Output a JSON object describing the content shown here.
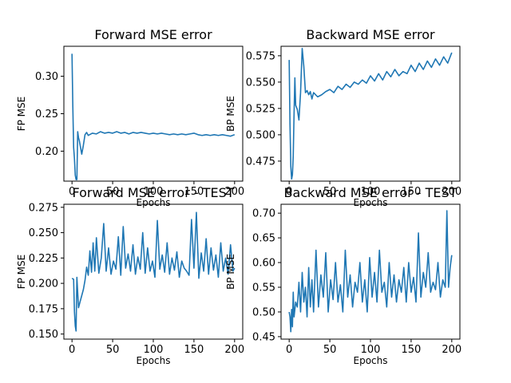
{
  "chart_data": [
    {
      "type": "line",
      "title": "Forward MSE error",
      "xlabel": "Epochs",
      "ylabel": "FP MSE",
      "xlim": [
        -10,
        210
      ],
      "ylim": [
        0.16,
        0.34
      ],
      "xticks": [
        0,
        50,
        100,
        150,
        200
      ],
      "yticks": [
        0.2,
        0.25,
        0.3
      ],
      "ytick_labels": [
        "0.20",
        "0.25",
        "0.30"
      ],
      "xtick_labels": [
        "0",
        "50",
        "100",
        "150",
        "200"
      ],
      "grid": false,
      "series": [
        {
          "x": [
            0,
            1,
            2,
            3,
            4,
            5,
            6,
            7,
            8,
            9,
            10,
            11,
            12,
            14,
            16,
            18,
            20,
            25,
            30,
            35,
            40,
            45,
            50,
            55,
            60,
            65,
            70,
            75,
            80,
            85,
            90,
            95,
            100,
            105,
            110,
            115,
            120,
            125,
            130,
            135,
            140,
            145,
            150,
            155,
            160,
            165,
            170,
            175,
            180,
            185,
            190,
            195,
            200
          ],
          "y": [
            0.33,
            0.26,
            0.205,
            0.19,
            0.168,
            0.162,
            0.162,
            0.226,
            0.218,
            0.214,
            0.208,
            0.202,
            0.196,
            0.208,
            0.222,
            0.225,
            0.221,
            0.224,
            0.223,
            0.226,
            0.224,
            0.225,
            0.224,
            0.226,
            0.224,
            0.225,
            0.223,
            0.225,
            0.224,
            0.225,
            0.224,
            0.223,
            0.224,
            0.223,
            0.224,
            0.223,
            0.222,
            0.223,
            0.222,
            0.223,
            0.222,
            0.223,
            0.224,
            0.222,
            0.221,
            0.222,
            0.221,
            0.222,
            0.221,
            0.222,
            0.221,
            0.22,
            0.222
          ]
        }
      ]
    },
    {
      "type": "line",
      "title": "Backward MSE error",
      "xlabel": "Epochs",
      "ylabel": "BP MSE",
      "xlim": [
        -10,
        210
      ],
      "ylim": [
        0.456,
        0.584
      ],
      "xticks": [
        0,
        50,
        100,
        150,
        200
      ],
      "yticks": [
        0.475,
        0.5,
        0.525,
        0.55,
        0.575
      ],
      "ytick_labels": [
        "0.475",
        "0.500",
        "0.525",
        "0.550",
        "0.575"
      ],
      "xtick_labels": [
        "0",
        "50",
        "100",
        "150",
        "200"
      ],
      "grid": false,
      "series": [
        {
          "x": [
            0,
            1,
            2,
            3,
            4,
            5,
            6,
            7,
            8,
            10,
            12,
            14,
            16,
            18,
            20,
            22,
            24,
            26,
            28,
            30,
            35,
            40,
            45,
            50,
            55,
            60,
            65,
            70,
            75,
            80,
            85,
            90,
            95,
            100,
            105,
            110,
            115,
            120,
            125,
            130,
            135,
            140,
            145,
            150,
            155,
            160,
            165,
            170,
            175,
            180,
            185,
            190,
            195,
            200
          ],
          "y": [
            0.571,
            0.51,
            0.47,
            0.458,
            0.462,
            0.48,
            0.52,
            0.554,
            0.528,
            0.524,
            0.514,
            0.54,
            0.582,
            0.565,
            0.54,
            0.542,
            0.538,
            0.541,
            0.534,
            0.54,
            0.536,
            0.538,
            0.541,
            0.543,
            0.54,
            0.546,
            0.543,
            0.548,
            0.545,
            0.55,
            0.548,
            0.552,
            0.549,
            0.556,
            0.551,
            0.558,
            0.552,
            0.56,
            0.555,
            0.562,
            0.556,
            0.56,
            0.558,
            0.566,
            0.56,
            0.568,
            0.562,
            0.57,
            0.564,
            0.572,
            0.566,
            0.574,
            0.568,
            0.578
          ]
        }
      ]
    },
    {
      "type": "line",
      "title": "Forward MSE error - TEST",
      "xlabel": "Epochs",
      "ylabel": "FP MSE",
      "xlim": [
        -10,
        210
      ],
      "ylim": [
        0.145,
        0.278
      ],
      "xticks": [
        0,
        50,
        100,
        150,
        200
      ],
      "yticks": [
        0.15,
        0.175,
        0.2,
        0.225,
        0.25,
        0.275
      ],
      "ytick_labels": [
        "0.150",
        "0.175",
        "0.200",
        "0.225",
        "0.250",
        "0.275"
      ],
      "xtick_labels": [
        "0",
        "50",
        "100",
        "150",
        "200"
      ],
      "grid": false,
      "series": [
        {
          "x": [
            0,
            2,
            3,
            4,
            5,
            6,
            8,
            10,
            12,
            14,
            16,
            18,
            20,
            22,
            24,
            26,
            28,
            30,
            33,
            36,
            39,
            42,
            45,
            48,
            51,
            54,
            57,
            60,
            63,
            66,
            69,
            72,
            75,
            78,
            81,
            84,
            87,
            90,
            93,
            96,
            99,
            102,
            105,
            108,
            111,
            114,
            117,
            120,
            123,
            126,
            129,
            132,
            135,
            138,
            141,
            144,
            147,
            150,
            153,
            156,
            159,
            162,
            165,
            168,
            171,
            174,
            177,
            180,
            183,
            186,
            189,
            192,
            195,
            198,
            200
          ],
          "y": [
            0.205,
            0.204,
            0.172,
            0.158,
            0.153,
            0.206,
            0.176,
            0.182,
            0.188,
            0.194,
            0.203,
            0.216,
            0.208,
            0.232,
            0.211,
            0.24,
            0.212,
            0.245,
            0.21,
            0.225,
            0.259,
            0.212,
            0.235,
            0.209,
            0.222,
            0.214,
            0.246,
            0.208,
            0.256,
            0.215,
            0.229,
            0.212,
            0.238,
            0.209,
            0.226,
            0.214,
            0.25,
            0.21,
            0.235,
            0.212,
            0.222,
            0.206,
            0.262,
            0.214,
            0.228,
            0.211,
            0.24,
            0.209,
            0.225,
            0.213,
            0.231,
            0.206,
            0.222,
            0.215,
            0.212,
            0.208,
            0.263,
            0.215,
            0.27,
            0.205,
            0.23,
            0.212,
            0.244,
            0.209,
            0.235,
            0.213,
            0.228,
            0.206,
            0.24,
            0.212,
            0.225,
            0.209,
            0.238,
            0.212,
            0.215
          ]
        }
      ]
    },
    {
      "type": "line",
      "title": "Backward MSE error - TEST",
      "xlabel": "Epochs",
      "ylabel": "BP MSE",
      "xlim": [
        -10,
        210
      ],
      "ylim": [
        0.445,
        0.718
      ],
      "xticks": [
        0,
        50,
        100,
        150,
        200
      ],
      "yticks": [
        0.45,
        0.5,
        0.55,
        0.6,
        0.65,
        0.7
      ],
      "ytick_labels": [
        "0.45",
        "0.50",
        "0.55",
        "0.60",
        "0.65",
        "0.70"
      ],
      "xtick_labels": [
        "0",
        "50",
        "100",
        "150",
        "200"
      ],
      "grid": false,
      "series": [
        {
          "x": [
            0,
            1,
            2,
            3,
            4,
            5,
            6,
            8,
            10,
            12,
            14,
            16,
            18,
            20,
            22,
            24,
            26,
            28,
            30,
            33,
            36,
            39,
            42,
            45,
            48,
            51,
            54,
            57,
            60,
            63,
            66,
            69,
            72,
            75,
            78,
            81,
            84,
            87,
            90,
            93,
            96,
            99,
            102,
            105,
            108,
            111,
            114,
            117,
            120,
            123,
            126,
            129,
            132,
            135,
            138,
            141,
            144,
            147,
            150,
            153,
            156,
            159,
            162,
            165,
            168,
            171,
            174,
            177,
            180,
            183,
            186,
            189,
            192,
            194,
            196,
            198,
            200
          ],
          "y": [
            0.5,
            0.49,
            0.46,
            0.505,
            0.47,
            0.54,
            0.49,
            0.52,
            0.51,
            0.56,
            0.5,
            0.58,
            0.52,
            0.55,
            0.49,
            0.59,
            0.51,
            0.565,
            0.5,
            0.625,
            0.51,
            0.575,
            0.53,
            0.62,
            0.5,
            0.565,
            0.525,
            0.6,
            0.52,
            0.555,
            0.5,
            0.625,
            0.53,
            0.575,
            0.51,
            0.56,
            0.54,
            0.6,
            0.52,
            0.565,
            0.5,
            0.61,
            0.53,
            0.58,
            0.52,
            0.625,
            0.54,
            0.56,
            0.51,
            0.6,
            0.53,
            0.575,
            0.52,
            0.565,
            0.54,
            0.59,
            0.52,
            0.6,
            0.54,
            0.57,
            0.52,
            0.66,
            0.53,
            0.58,
            0.55,
            0.62,
            0.54,
            0.56,
            0.545,
            0.6,
            0.53,
            0.565,
            0.55,
            0.705,
            0.55,
            0.59,
            0.615
          ]
        }
      ]
    }
  ]
}
